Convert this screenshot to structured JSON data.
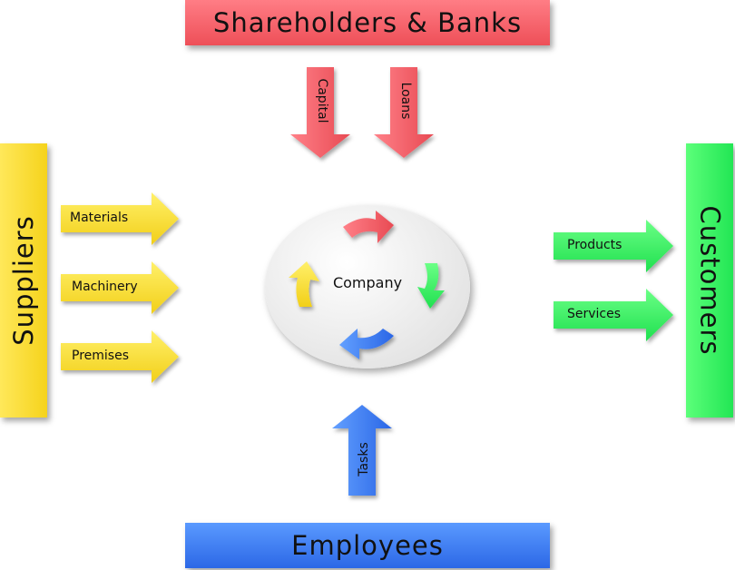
{
  "stakeholders": {
    "top": "Shareholders & Banks",
    "bottom": "Employees",
    "left": "Suppliers",
    "right": "Customers"
  },
  "flows": {
    "capital": "Capital",
    "loans": "Loans",
    "materials": "Materials",
    "machinery": "Machinery",
    "premises": "Premises",
    "products": "Products",
    "services": "Services",
    "tasks": "Tasks"
  },
  "center": {
    "label": "Company"
  },
  "colors": {
    "red": "#f0555e",
    "blue": "#3b7bf0",
    "yellow": "#f7dc2e",
    "green": "#33ee66"
  }
}
